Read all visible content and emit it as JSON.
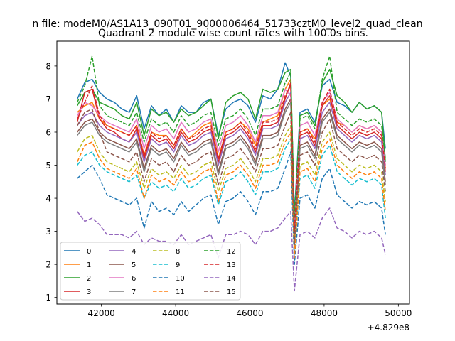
{
  "figure": {
    "suptitle": "n file: modeM0/AS1A13_090T01_9000006464_51733cztM0_level2_quad_clean"
  },
  "chart_data": {
    "type": "line",
    "title": "Quadrant 2 module wise count rates with 100.0s bins.",
    "xlabel": "",
    "ylabel": "",
    "xlim": [
      40800,
      50300
    ],
    "ylim": [
      0.8,
      8.75
    ],
    "x_offset_text": "+4.829e8",
    "x_ticks": [
      {
        "value": 42000,
        "label": "42000"
      },
      {
        "value": 44000,
        "label": "44000"
      },
      {
        "value": 46000,
        "label": "46000"
      },
      {
        "value": 48000,
        "label": "48000"
      },
      {
        "value": 50000,
        "label": "50000"
      }
    ],
    "y_ticks": [
      {
        "value": 1,
        "label": "1"
      },
      {
        "value": 2,
        "label": "2"
      },
      {
        "value": 3,
        "label": "3"
      },
      {
        "value": 4,
        "label": "4"
      },
      {
        "value": 5,
        "label": "5"
      },
      {
        "value": 6,
        "label": "6"
      },
      {
        "value": 7,
        "label": "7"
      },
      {
        "value": 8,
        "label": "8"
      }
    ],
    "grid": false,
    "legend": {
      "placement": "lower-left",
      "columns": 4
    },
    "x": [
      41350,
      41550,
      41750,
      41950,
      42150,
      42350,
      42550,
      42750,
      42950,
      43150,
      43350,
      43550,
      43750,
      43950,
      44150,
      44350,
      44550,
      44750,
      44950,
      45150,
      45350,
      45550,
      45750,
      45950,
      46150,
      46350,
      46550,
      46750,
      46950,
      47100,
      47200,
      47350,
      47550,
      47750,
      47950,
      48150,
      48350,
      48550,
      48750,
      48950,
      49150,
      49350,
      49550,
      49650
    ],
    "series": [
      {
        "name": "0",
        "color": "#1f77b4",
        "dashed": false,
        "values": [
          7.0,
          7.5,
          7.6,
          7.2,
          7.0,
          6.9,
          6.7,
          6.6,
          7.1,
          6.1,
          6.8,
          6.5,
          6.7,
          6.3,
          6.8,
          6.6,
          6.6,
          6.9,
          7.0,
          5.9,
          6.7,
          6.9,
          7.0,
          6.8,
          6.3,
          7.1,
          7.0,
          7.3,
          8.1,
          7.7,
          3.5,
          6.6,
          6.7,
          6.3,
          7.4,
          7.6,
          6.9,
          6.8,
          6.6,
          6.9,
          6.7,
          6.8,
          6.6,
          5.5
        ]
      },
      {
        "name": "1",
        "color": "#ff7f0e",
        "dashed": false,
        "values": [
          6.6,
          6.8,
          6.9,
          6.4,
          6.2,
          6.1,
          6.0,
          5.9,
          6.2,
          5.3,
          6.0,
          5.9,
          5.9,
          5.6,
          6.1,
          5.8,
          6.0,
          6.2,
          6.3,
          5.2,
          6.0,
          6.1,
          6.3,
          6.1,
          5.6,
          6.3,
          6.4,
          6.5,
          7.3,
          7.6,
          3.1,
          6.0,
          6.1,
          5.8,
          6.8,
          7.0,
          6.3,
          6.2,
          6.0,
          6.2,
          6.1,
          6.2,
          6.0,
          4.9
        ]
      },
      {
        "name": "2",
        "color": "#2ca02c",
        "dashed": false,
        "values": [
          6.8,
          7.2,
          7.3,
          6.9,
          6.8,
          6.7,
          6.5,
          6.4,
          6.9,
          5.9,
          6.7,
          6.5,
          6.6,
          6.3,
          6.7,
          6.5,
          6.6,
          6.8,
          7.0,
          5.8,
          6.9,
          7.1,
          7.2,
          7.0,
          6.4,
          7.3,
          7.2,
          7.3,
          7.8,
          7.9,
          3.3,
          6.5,
          6.6,
          6.2,
          7.5,
          7.9,
          7.1,
          6.9,
          6.6,
          6.9,
          6.7,
          6.8,
          6.6,
          5.1
        ]
      },
      {
        "name": "3",
        "color": "#d62728",
        "dashed": false,
        "values": [
          6.3,
          7.2,
          7.3,
          6.4,
          6.1,
          6.0,
          5.8,
          5.7,
          6.1,
          5.2,
          5.9,
          5.7,
          5.8,
          5.5,
          6.0,
          5.7,
          5.8,
          6.0,
          6.1,
          5.1,
          5.9,
          6.0,
          6.2,
          5.9,
          5.4,
          6.2,
          6.2,
          6.3,
          7.0,
          7.5,
          3.0,
          5.9,
          6.0,
          5.6,
          6.8,
          7.1,
          6.2,
          6.0,
          5.8,
          6.0,
          5.9,
          6.0,
          5.8,
          4.8
        ]
      },
      {
        "name": "4",
        "color": "#9467bd",
        "dashed": false,
        "values": [
          6.2,
          6.5,
          6.6,
          6.2,
          6.0,
          5.9,
          5.8,
          5.7,
          6.0,
          5.1,
          5.8,
          5.6,
          5.7,
          5.4,
          5.9,
          5.6,
          5.7,
          5.9,
          6.0,
          5.0,
          5.8,
          5.9,
          6.1,
          5.8,
          5.3,
          6.1,
          6.1,
          6.2,
          6.9,
          7.2,
          2.9,
          5.8,
          5.9,
          5.5,
          6.6,
          6.9,
          6.1,
          5.9,
          5.7,
          5.9,
          5.8,
          5.9,
          5.7,
          4.7
        ]
      },
      {
        "name": "5",
        "color": "#8c564b",
        "dashed": false,
        "values": [
          6.0,
          6.3,
          6.4,
          6.0,
          5.8,
          5.7,
          5.6,
          5.5,
          5.8,
          4.9,
          5.6,
          5.4,
          5.5,
          5.2,
          5.7,
          5.4,
          5.5,
          5.7,
          5.8,
          4.8,
          5.6,
          5.7,
          5.9,
          5.6,
          5.1,
          5.9,
          5.9,
          6.0,
          6.7,
          7.0,
          2.8,
          5.6,
          5.7,
          5.3,
          6.4,
          6.7,
          5.9,
          5.7,
          5.5,
          5.7,
          5.6,
          5.7,
          5.5,
          4.5
        ]
      },
      {
        "name": "6",
        "color": "#e377c2",
        "dashed": false,
        "values": [
          6.5,
          6.9,
          6.8,
          6.5,
          6.3,
          6.2,
          6.1,
          6.0,
          6.4,
          5.5,
          6.2,
          6.0,
          6.1,
          5.8,
          6.3,
          6.0,
          6.1,
          6.3,
          6.4,
          5.4,
          6.2,
          6.3,
          6.5,
          6.2,
          5.7,
          6.5,
          6.5,
          6.6,
          7.3,
          7.1,
          3.2,
          6.2,
          6.3,
          5.9,
          6.9,
          7.2,
          6.4,
          6.2,
          6.0,
          6.2,
          6.1,
          6.2,
          6.0,
          5.0
        ]
      },
      {
        "name": "7",
        "color": "#7f7f7f",
        "dashed": false,
        "values": [
          5.9,
          6.2,
          6.3,
          5.9,
          5.7,
          5.6,
          5.5,
          5.4,
          5.7,
          4.8,
          5.5,
          5.3,
          5.4,
          5.1,
          5.6,
          5.3,
          5.4,
          5.6,
          5.7,
          4.7,
          5.5,
          5.6,
          5.8,
          5.5,
          5.0,
          5.8,
          5.8,
          5.9,
          6.6,
          6.9,
          2.7,
          5.5,
          5.6,
          5.2,
          6.3,
          6.6,
          5.8,
          5.6,
          5.4,
          5.6,
          5.5,
          5.6,
          5.4,
          4.4
        ]
      },
      {
        "name": "8",
        "color": "#bcbd22",
        "dashed": true,
        "values": [
          5.4,
          5.8,
          5.9,
          5.4,
          5.1,
          5.0,
          4.9,
          4.8,
          5.1,
          4.3,
          4.9,
          4.7,
          4.8,
          4.6,
          5.0,
          4.7,
          4.8,
          5.0,
          5.1,
          4.2,
          4.9,
          5.0,
          5.2,
          4.9,
          4.5,
          5.2,
          5.2,
          5.3,
          5.9,
          6.2,
          2.5,
          5.0,
          5.1,
          4.7,
          5.7,
          6.0,
          5.2,
          5.0,
          4.8,
          5.0,
          4.9,
          5.0,
          4.8,
          3.9
        ]
      },
      {
        "name": "9",
        "color": "#17becf",
        "dashed": true,
        "values": [
          5.0,
          5.3,
          5.4,
          5.0,
          4.8,
          4.7,
          4.6,
          4.5,
          4.7,
          4.0,
          4.5,
          4.3,
          4.4,
          4.2,
          4.6,
          4.3,
          4.4,
          4.6,
          4.7,
          3.8,
          4.5,
          4.6,
          4.8,
          4.5,
          4.1,
          4.8,
          4.8,
          4.9,
          5.5,
          5.8,
          2.3,
          4.6,
          4.7,
          4.3,
          5.3,
          5.6,
          4.8,
          4.6,
          4.4,
          4.6,
          4.5,
          4.6,
          4.4,
          3.4
        ]
      },
      {
        "name": "10",
        "color": "#1f77b4",
        "dashed": true,
        "values": [
          4.6,
          4.8,
          5.0,
          4.6,
          4.1,
          4.0,
          3.9,
          3.8,
          4.0,
          3.1,
          3.9,
          3.6,
          3.7,
          3.5,
          3.9,
          3.6,
          3.8,
          4.0,
          4.1,
          3.2,
          3.9,
          4.0,
          4.2,
          3.9,
          3.5,
          4.2,
          4.2,
          4.3,
          4.9,
          5.4,
          2.0,
          4.0,
          4.1,
          3.7,
          4.6,
          4.9,
          4.1,
          3.9,
          3.7,
          3.9,
          3.8,
          3.9,
          3.7,
          2.9
        ]
      },
      {
        "name": "11",
        "color": "#ff7f0e",
        "dashed": true,
        "values": [
          5.1,
          5.6,
          5.7,
          5.2,
          4.9,
          4.8,
          4.7,
          4.6,
          4.9,
          4.0,
          4.7,
          4.5,
          4.6,
          4.4,
          4.8,
          4.5,
          4.6,
          4.8,
          4.9,
          3.9,
          4.7,
          4.8,
          5.0,
          4.7,
          4.3,
          5.0,
          5.0,
          5.1,
          5.7,
          6.0,
          2.2,
          4.8,
          4.9,
          4.5,
          5.5,
          5.8,
          5.0,
          4.8,
          4.6,
          4.8,
          4.7,
          4.8,
          4.6,
          3.6
        ]
      },
      {
        "name": "12",
        "color": "#2ca02c",
        "dashed": true,
        "values": [
          6.9,
          7.4,
          8.3,
          6.8,
          6.5,
          6.4,
          6.3,
          6.2,
          6.6,
          5.7,
          6.4,
          6.2,
          6.3,
          6.0,
          6.5,
          6.2,
          6.3,
          6.5,
          6.6,
          5.6,
          6.4,
          6.5,
          6.7,
          6.4,
          5.9,
          6.7,
          6.7,
          6.8,
          7.5,
          7.8,
          3.4,
          6.4,
          6.5,
          6.1,
          7.6,
          8.3,
          6.6,
          6.4,
          6.2,
          6.4,
          6.3,
          6.4,
          6.2,
          5.2
        ]
      },
      {
        "name": "13",
        "color": "#d62728",
        "dashed": true,
        "values": [
          6.4,
          6.9,
          7.4,
          6.5,
          6.2,
          6.1,
          6.0,
          5.9,
          6.2,
          5.3,
          6.0,
          5.8,
          5.9,
          5.6,
          6.1,
          5.8,
          5.9,
          6.1,
          6.2,
          5.2,
          6.0,
          6.1,
          6.3,
          6.0,
          5.5,
          6.3,
          6.3,
          6.4,
          7.1,
          7.4,
          3.0,
          6.0,
          6.1,
          5.7,
          6.9,
          7.3,
          6.3,
          6.1,
          5.9,
          6.1,
          6.0,
          6.1,
          5.9,
          4.9
        ]
      },
      {
        "name": "14",
        "color": "#9467bd",
        "dashed": true,
        "values": [
          3.6,
          3.3,
          3.4,
          3.2,
          2.9,
          2.9,
          2.9,
          2.8,
          3.0,
          2.6,
          2.8,
          2.7,
          2.7,
          2.6,
          2.9,
          2.6,
          2.7,
          2.8,
          2.9,
          2.2,
          2.9,
          2.9,
          3.0,
          2.9,
          2.6,
          3.0,
          3.0,
          3.1,
          3.4,
          3.6,
          1.2,
          2.9,
          3.0,
          2.8,
          3.4,
          3.7,
          3.1,
          3.0,
          2.8,
          3.0,
          2.9,
          3.0,
          2.8,
          2.3
        ]
      },
      {
        "name": "15",
        "color": "#8c564b",
        "dashed": true,
        "values": [
          6.2,
          6.6,
          6.7,
          6.0,
          5.4,
          5.3,
          5.2,
          5.1,
          5.4,
          4.5,
          5.2,
          5.0,
          5.1,
          4.8,
          5.3,
          5.0,
          5.1,
          5.3,
          5.4,
          4.4,
          5.2,
          5.3,
          5.5,
          5.2,
          4.8,
          5.5,
          5.5,
          5.6,
          6.2,
          6.6,
          2.6,
          5.3,
          5.4,
          5.0,
          6.0,
          6.4,
          5.5,
          5.3,
          5.1,
          5.3,
          5.2,
          5.3,
          5.1,
          4.2
        ]
      }
    ]
  }
}
